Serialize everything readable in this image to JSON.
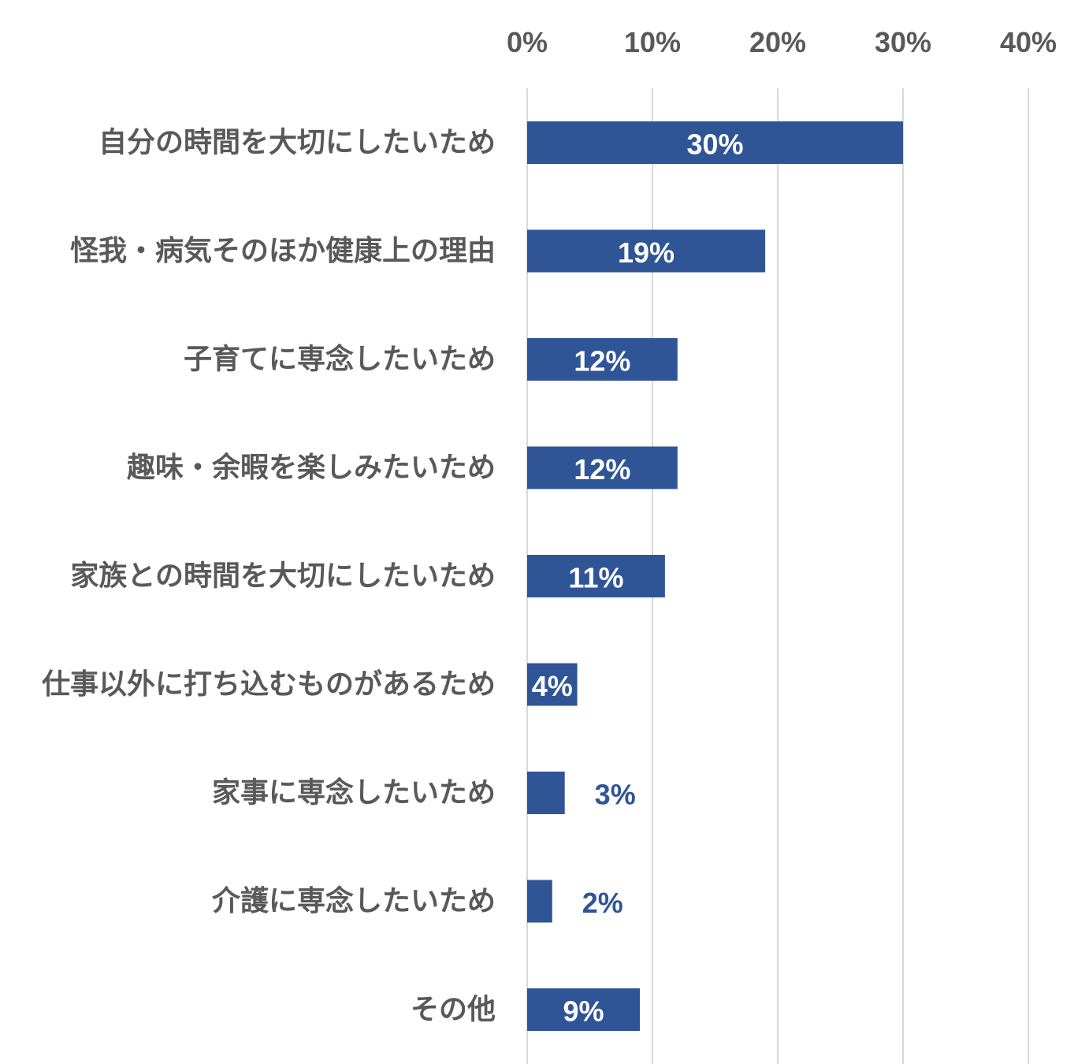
{
  "chart_data": {
    "type": "bar",
    "orientation": "horizontal",
    "categories": [
      "自分の時間を大切にしたいため",
      "怪我・病気そのほか健康上の理由",
      "子育てに専念したいため",
      "趣味・余暇を楽しみたいため",
      "家族との時間を大切にしたいため",
      "仕事以外に打ち込むものがあるため",
      "家事に専念したいため",
      "介護に専念したいため",
      "その他"
    ],
    "values": [
      30,
      19,
      12,
      12,
      11,
      4,
      3,
      2,
      9
    ],
    "data_labels": [
      "30%",
      "19%",
      "12%",
      "12%",
      "11%",
      "4%",
      "3%",
      "2%",
      "9%"
    ],
    "xlim": [
      0,
      40
    ],
    "x_ticks": [
      "0%",
      "10%",
      "20%",
      "30%",
      "40%"
    ],
    "x_axis_position": "top",
    "grid": true,
    "bar_color": "#2F5597",
    "title": "",
    "xlabel": "",
    "ylabel": ""
  }
}
